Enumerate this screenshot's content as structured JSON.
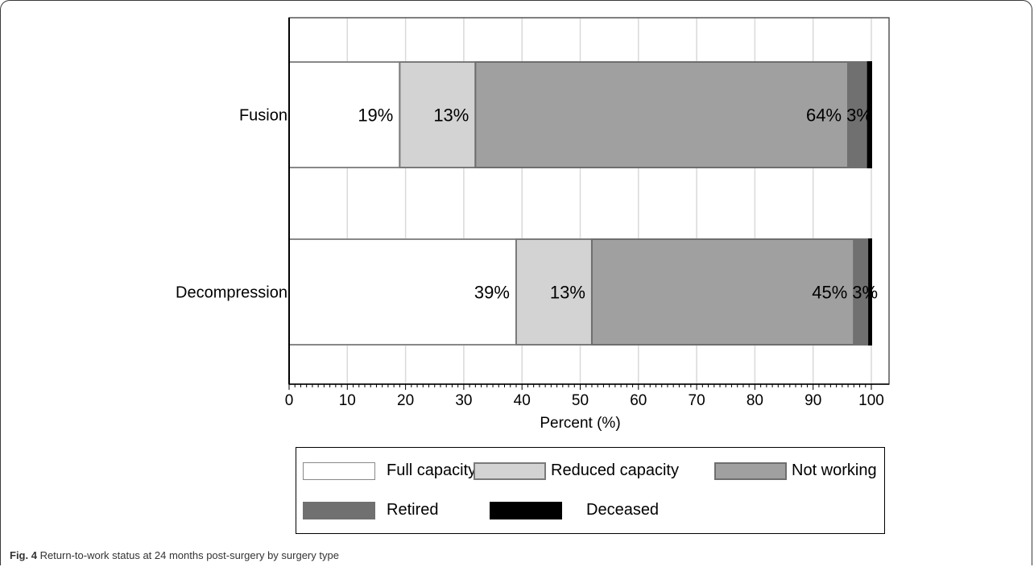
{
  "chart_data": {
    "type": "bar",
    "orientation": "horizontal",
    "stacked": true,
    "categories": [
      "Fusion",
      "Decompression"
    ],
    "series": [
      {
        "name": "Full capacity",
        "values": [
          19,
          39
        ],
        "labels": [
          "19%",
          "39%"
        ],
        "color": "#ffffff",
        "stroke": "#888888"
      },
      {
        "name": "Reduced capacity",
        "values": [
          13,
          13
        ],
        "labels": [
          "13%",
          "13%"
        ],
        "color": "#d3d3d3",
        "stroke": "#7a7a7a"
      },
      {
        "name": "Not working",
        "values": [
          64,
          45
        ],
        "labels": [
          "64%",
          "45%"
        ],
        "color": "#a0a0a0",
        "stroke": "#6e6e6e"
      },
      {
        "name": "Retired",
        "values": [
          3.4,
          2.6
        ],
        "labels": [
          "3%",
          "3%"
        ],
        "color": "#707070",
        "stroke": "#707070"
      },
      {
        "name": "Deceased",
        "values": [
          0.6,
          0.4
        ],
        "labels": [
          "",
          ""
        ],
        "color": "#000000",
        "stroke": "#000000"
      }
    ],
    "xlabel": "Percent (%)",
    "xlim": [
      0,
      100
    ],
    "xticks": [
      "0",
      "10",
      "20",
      "30",
      "40",
      "50",
      "60",
      "70",
      "80",
      "90",
      "100"
    ],
    "grid": true,
    "legend": "bottom"
  },
  "caption": {
    "fig_label": "Fig. 4",
    "text": " Return-to-work status at 24 months post-surgery by surgery type"
  }
}
